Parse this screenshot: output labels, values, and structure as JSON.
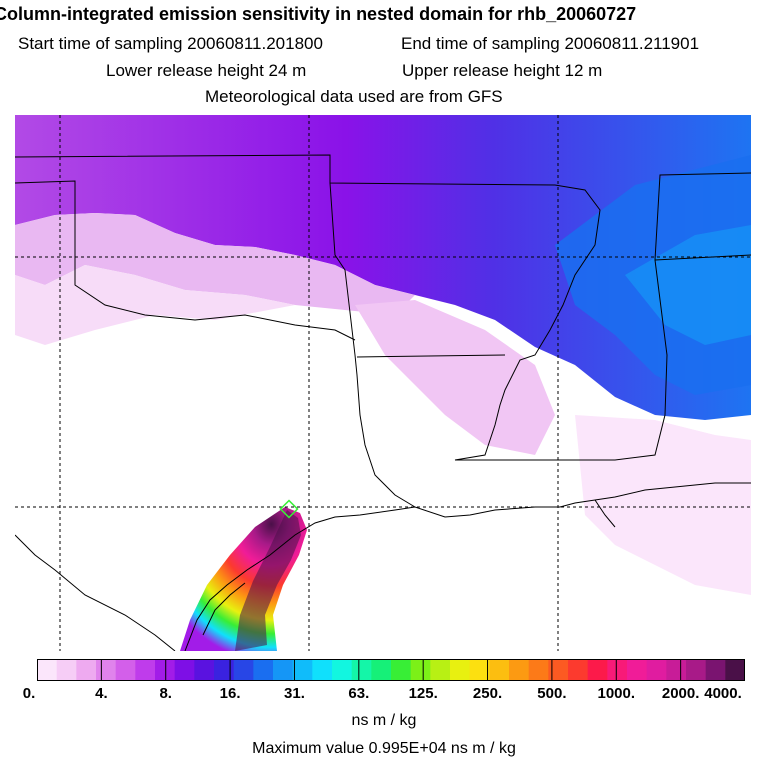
{
  "title": "Column-integrated emission sensitivity in nested domain for rhb_20060727",
  "start_time": "Start time of sampling 20060811.201800",
  "end_time": "End time of sampling 20060811.211901",
  "lower_release": "Lower release height   24 m",
  "upper_release": "Upper release height   12 m",
  "met_data": "Meteorological data used are from GFS",
  "colorbar": {
    "tick_labels": [
      "0.",
      "4.",
      "8.",
      "16.",
      "31.",
      "63.",
      "125.",
      "250.",
      "500.",
      "1000.",
      "2000.",
      "4000."
    ],
    "colors": [
      "#fbe6fb",
      "#f6cdf6",
      "#eeaaf0",
      "#e083ec",
      "#d35fea",
      "#bf3ceb",
      "#a21ce8",
      "#7e0fe6",
      "#5a12e0",
      "#3a22e0",
      "#2846e6",
      "#1a6ef0",
      "#1596f6",
      "#10bcfa",
      "#10e0fc",
      "#12f6e0",
      "#14f6a8",
      "#16f078",
      "#38ee36",
      "#7cf018",
      "#b8f014",
      "#e8f010",
      "#fce010",
      "#fcbe10",
      "#fc9a12",
      "#fc7a18",
      "#fc5a22",
      "#fc3a2e",
      "#fc1a4a",
      "#f81a78",
      "#f01c98",
      "#e01ca0",
      "#c81c98",
      "#a81a88",
      "#7a1470",
      "#4a1048"
    ],
    "units": "ns m / kg"
  },
  "max_value": "Maximum value  0.995E+04 ns m / kg"
}
